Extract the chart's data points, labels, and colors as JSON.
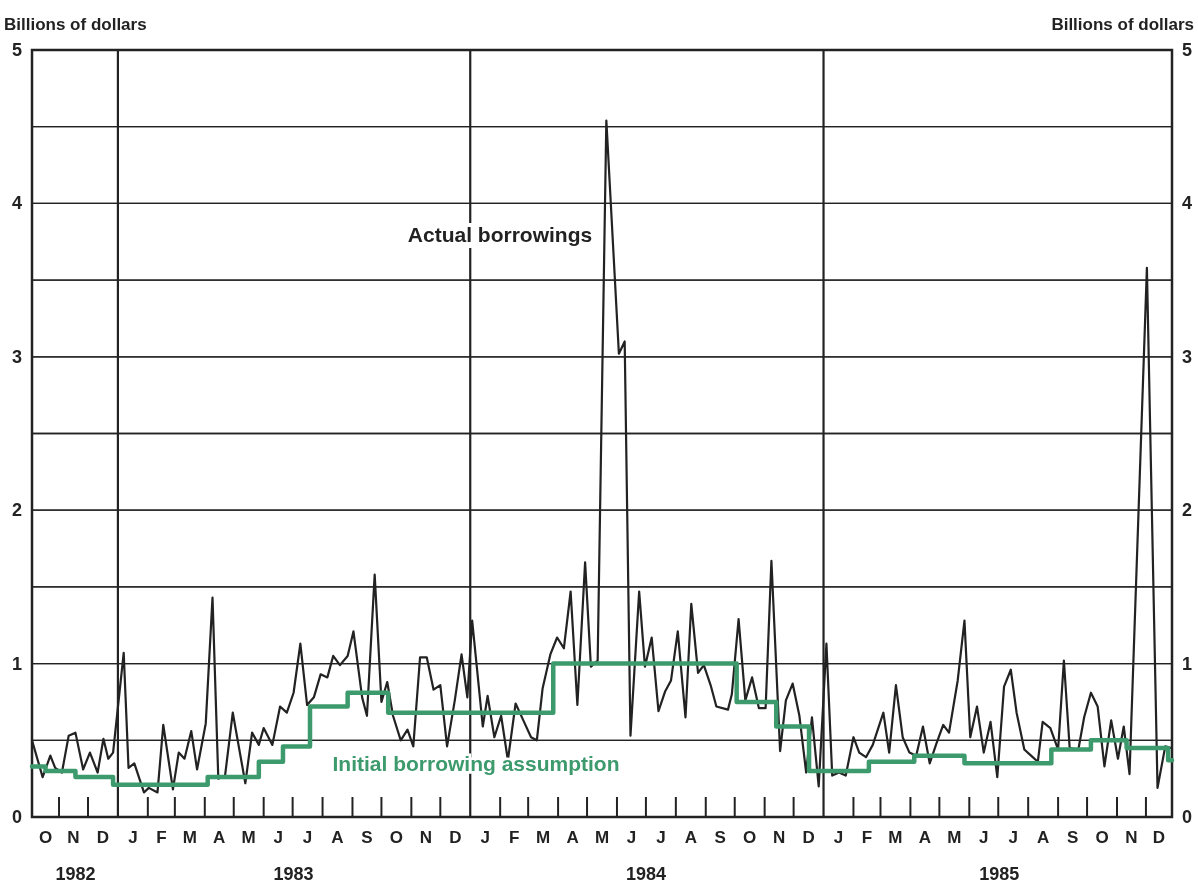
{
  "chart_data": {
    "type": "line",
    "ylabel": "Billions of dollars",
    "y2label": "Billions of dollars",
    "xlim": [
      "1982-10-04",
      "1985-12-28"
    ],
    "xticks": [
      {
        "value": "1982-11-18",
        "label": "1982"
      },
      {
        "value": "1983-07-02",
        "label": "1983"
      },
      {
        "value": "1984-07-01",
        "label": "1984"
      },
      {
        "value": "1985-07-02",
        "label": "1985"
      }
    ],
    "ylim": [
      0,
      5
    ],
    "yticks": [
      0,
      {
        "value": 0.5,
        "label": null
      },
      1,
      {
        "value": 1.5,
        "label": null
      },
      2,
      {
        "value": 2.5,
        "label": null
      },
      3,
      {
        "value": 3.5,
        "label": null
      },
      4,
      {
        "value": 4.5,
        "label": null
      },
      5
    ],
    "y2lim": [
      0,
      5
    ],
    "y2ticks": [
      0,
      {
        "value": 0.5,
        "label": null
      },
      1,
      {
        "value": 1.5,
        "label": null
      },
      2,
      {
        "value": 2.5,
        "label": null
      },
      3,
      {
        "value": 3.5,
        "label": null
      },
      4,
      {
        "value": 4.5,
        "label": null
      },
      5
    ],
    "grid": "y",
    "legend": false,
    "ref_lines": [
      {
        "axis": "x",
        "value": "1983-01-01",
        "color": "#222222"
      },
      {
        "axis": "x",
        "value": "1984-01-01",
        "color": "#222222"
      },
      {
        "axis": "x",
        "value": "1985-01-01",
        "color": "#222222"
      }
    ],
    "annotations": [
      "O",
      "N",
      "D",
      "J",
      "F",
      "M",
      "A",
      "M",
      "J",
      "J",
      "A",
      "S",
      "O",
      "N",
      "D",
      "J",
      "F",
      "M",
      "A",
      "M",
      "J",
      "J",
      "A",
      "S",
      "O",
      "N",
      "D",
      "J",
      "F",
      "M",
      "A",
      "M",
      "J",
      "J",
      "A",
      "S",
      "O",
      "N",
      "D"
    ],
    "series": [
      {
        "name": "Actual borrowings",
        "type": "line",
        "color": "#222222",
        "x": [
          "1982-10-04",
          "1982-10-15",
          "1982-10-23",
          "1982-10-28",
          "1982-11-04",
          "1982-11-11",
          "1982-11-18",
          "1982-11-26",
          "1982-12-03",
          "1982-12-11",
          "1982-12-17",
          "1982-12-22",
          "1982-12-27",
          "1983-01-07",
          "1983-01-12",
          "1983-01-18",
          "1983-01-28",
          "1983-02-02",
          "1983-02-11",
          "1983-02-17",
          "1983-02-27",
          "1983-03-05",
          "1983-03-11",
          "1983-03-18",
          "1983-03-24",
          "1983-04-02",
          "1983-04-09",
          "1983-04-15",
          "1983-04-22",
          "1983-04-30",
          "1983-05-13",
          "1983-05-20",
          "1983-05-27",
          "1983-06-01",
          "1983-06-10",
          "1983-06-18",
          "1983-06-25",
          "1983-07-02",
          "1983-07-09",
          "1983-07-16",
          "1983-07-23",
          "1983-07-30",
          "1983-08-06",
          "1983-08-12",
          "1983-08-19",
          "1983-08-27",
          "1983-09-02",
          "1983-09-11",
          "1983-09-16",
          "1983-09-24",
          "1983-10-01",
          "1983-10-07",
          "1983-10-13",
          "1983-10-21",
          "1983-10-28",
          "1983-11-03",
          "1983-11-10",
          "1983-11-17",
          "1983-11-24",
          "1983-12-01",
          "1983-12-08",
          "1983-12-16",
          "1983-12-23",
          "1983-12-29",
          "1984-01-03",
          "1984-01-14",
          "1984-01-19",
          "1984-01-26",
          "1984-02-02",
          "1984-02-09",
          "1984-02-17",
          "1984-02-25",
          "1984-03-04",
          "1984-03-10",
          "1984-03-16",
          "1984-03-24",
          "1984-03-31",
          "1984-04-07",
          "1984-04-14",
          "1984-04-21",
          "1984-04-29",
          "1984-05-05",
          "1984-05-12",
          "1984-05-21",
          "1984-06-03",
          "1984-06-09",
          "1984-06-15",
          "1984-06-24",
          "1984-06-30",
          "1984-07-07",
          "1984-07-14",
          "1984-07-21",
          "1984-07-27",
          "1984-08-03",
          "1984-08-11",
          "1984-08-17",
          "1984-08-24",
          "1984-08-30",
          "1984-09-06",
          "1984-09-12",
          "1984-09-24",
          "1984-09-28",
          "1984-10-05",
          "1984-10-12",
          "1984-10-19",
          "1984-10-26",
          "1984-11-02",
          "1984-11-08",
          "1984-11-17",
          "1984-11-23",
          "1984-11-30",
          "1984-12-07",
          "1984-12-14",
          "1984-12-20",
          "1984-12-27",
          "1985-01-04",
          "1985-01-10",
          "1985-01-17",
          "1985-01-24",
          "1985-02-01",
          "1985-02-07",
          "1985-02-14",
          "1985-02-21",
          "1985-03-04",
          "1985-03-10",
          "1985-03-17",
          "1985-03-24",
          "1985-03-31",
          "1985-04-07",
          "1985-04-14",
          "1985-04-21",
          "1985-04-28",
          "1985-05-05",
          "1985-05-11",
          "1985-05-20",
          "1985-05-27",
          "1985-06-02",
          "1985-06-09",
          "1985-06-16",
          "1985-06-23",
          "1985-06-30",
          "1985-07-07",
          "1985-07-14",
          "1985-07-20",
          "1985-07-28",
          "1985-08-04",
          "1985-08-11",
          "1985-08-16",
          "1985-08-24",
          "1985-09-01",
          "1985-09-07",
          "1985-09-13",
          "1985-09-22",
          "1985-09-28",
          "1985-10-05",
          "1985-10-12",
          "1985-10-19",
          "1985-10-26",
          "1985-11-02",
          "1985-11-08",
          "1985-11-14",
          "1985-12-02",
          "1985-12-13",
          "1985-12-21",
          "1985-12-27"
        ],
        "values": [
          0.5,
          0.26,
          0.4,
          0.32,
          0.29,
          0.53,
          0.55,
          0.31,
          0.42,
          0.29,
          0.51,
          0.38,
          0.42,
          1.07,
          0.32,
          0.35,
          0.16,
          0.19,
          0.16,
          0.6,
          0.18,
          0.42,
          0.38,
          0.56,
          0.31,
          0.61,
          1.43,
          0.25,
          0.27,
          0.68,
          0.22,
          0.55,
          0.47,
          0.58,
          0.47,
          0.72,
          0.68,
          0.81,
          1.13,
          0.73,
          0.78,
          0.93,
          0.91,
          1.05,
          0.99,
          1.05,
          1.21,
          0.78,
          0.66,
          1.58,
          0.75,
          0.88,
          0.66,
          0.5,
          0.57,
          0.46,
          1.04,
          1.04,
          0.83,
          0.86,
          0.46,
          0.76,
          1.06,
          0.78,
          1.28,
          0.59,
          0.79,
          0.52,
          0.66,
          0.37,
          0.74,
          0.63,
          0.52,
          0.5,
          0.84,
          1.06,
          1.17,
          1.1,
          1.47,
          0.73,
          1.66,
          0.98,
          1.02,
          4.54,
          3.02,
          3.1,
          0.53,
          1.47,
          0.98,
          1.17,
          0.69,
          0.82,
          0.89,
          1.21,
          0.65,
          1.39,
          0.94,
          0.99,
          0.86,
          0.72,
          0.7,
          0.8,
          1.29,
          0.76,
          0.91,
          0.71,
          0.71,
          1.67,
          0.43,
          0.76,
          0.87,
          0.66,
          0.29,
          0.65,
          0.2,
          1.13,
          0.27,
          0.29,
          0.27,
          0.52,
          0.42,
          0.39,
          0.47,
          0.68,
          0.42,
          0.86,
          0.52,
          0.42,
          0.4,
          0.59,
          0.35,
          0.48,
          0.6,
          0.55,
          0.89,
          1.28,
          0.52,
          0.72,
          0.42,
          0.62,
          0.26,
          0.85,
          0.96,
          0.68,
          0.44,
          0.4,
          0.36,
          0.62,
          0.58,
          0.44,
          1.02,
          0.45,
          0.44,
          0.65,
          0.81,
          0.72,
          0.33,
          0.63,
          0.38,
          0.59,
          0.28,
          3.58,
          0.19,
          0.46,
          0.45
        ]
      },
      {
        "name": "Initial borrowing assumption",
        "type": "step",
        "color": "#3d9a6c",
        "x": [
          "1982-10-04",
          "1982-10-18",
          "1982-11-18",
          "1982-12-27",
          "1983-04-04",
          "1983-05-27",
          "1983-06-21",
          "1983-07-19",
          "1983-08-27",
          "1983-10-08",
          "1984-03-27",
          "1984-10-03",
          "1984-11-13",
          "1984-12-17",
          "1985-02-17",
          "1985-04-05",
          "1985-05-27",
          "1985-08-25",
          "1985-10-05",
          "1985-11-11",
          "1985-12-24",
          "1985-12-28"
        ],
        "values": [
          0.33,
          0.3,
          0.26,
          0.21,
          0.26,
          0.36,
          0.46,
          0.72,
          0.81,
          0.68,
          1.0,
          0.75,
          0.59,
          0.3,
          0.36,
          0.4,
          0.35,
          0.44,
          0.5,
          0.45,
          0.37,
          0.37
        ]
      }
    ]
  }
}
